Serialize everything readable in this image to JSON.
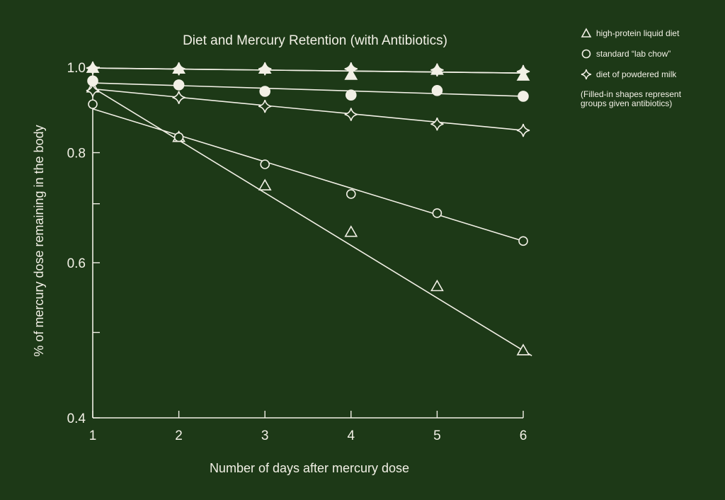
{
  "chart_data": {
    "type": "line",
    "title": "Diet and Mercury Retention (with Antibiotics)",
    "xlabel": "Number of days after mercury dose",
    "ylabel": "% of mercury dose remaining in the body",
    "x": [
      1,
      2,
      3,
      4,
      5,
      6
    ],
    "xlim": [
      1,
      6
    ],
    "ylim": [
      0.4,
      1.0
    ],
    "yscale": "log",
    "xticks": [
      "1",
      "2",
      "3",
      "4",
      "5",
      "6"
    ],
    "yticks": [
      "1.0",
      "0.8",
      "0.6",
      "0.4"
    ],
    "y_minor_ticks": [
      0.7,
      0.5
    ],
    "grid": false,
    "legend_position": "right",
    "series": [
      {
        "name": "high-protein liquid diet",
        "marker": "triangle",
        "filled": false,
        "values": [
          0.948,
          0.833,
          0.734,
          0.65,
          0.564,
          0.477
        ],
        "fit": [
          0.948,
          0.477
        ]
      },
      {
        "name": "standard \"lab chow\"",
        "marker": "circle",
        "filled": false,
        "values": [
          0.908,
          0.833,
          0.776,
          0.718,
          0.683,
          0.635
        ],
        "fit": [
          0.897,
          0.635
        ]
      },
      {
        "name": "diet of powdered milk",
        "marker": "star",
        "filled": false,
        "values": [
          0.941,
          0.924,
          0.903,
          0.884,
          0.862,
          0.848
        ],
        "fit": [
          0.945,
          0.848
        ]
      },
      {
        "name": "high-protein liquid diet (antibiotics)",
        "marker": "triangle",
        "filled": true,
        "values": [
          0.998,
          0.996,
          0.996,
          0.98,
          0.993,
          0.978
        ],
        "fit": [
          0.998,
          0.985
        ]
      },
      {
        "name": "standard \"lab chow\" (antibiotics)",
        "marker": "circle",
        "filled": true,
        "values": [
          0.965,
          0.955,
          0.939,
          0.93,
          0.941,
          0.927
        ],
        "fit": [
          0.96,
          0.927
        ]
      },
      {
        "name": "diet of powdered milk (antibiotics)",
        "marker": "star",
        "filled": true,
        "values": [
          0.998,
          0.996,
          0.996,
          0.996,
          0.993,
          0.989
        ],
        "fit": [
          0.998,
          0.985
        ]
      }
    ],
    "annotations": [
      "(Filled-in shapes represent groups given antibiotics)"
    ]
  },
  "legend": {
    "items": [
      {
        "label": "high-protein liquid diet",
        "icon": "triangle-icon"
      },
      {
        "label": "standard “lab chow”",
        "icon": "circle-icon"
      },
      {
        "label": "diet of powdered milk",
        "icon": "star-icon"
      }
    ],
    "note_line1": "(Filled-in shapes represent",
    "note_line2": "groups given antibiotics)"
  },
  "colors": {
    "background": "#1d3917",
    "foreground": "#f2f0e6"
  }
}
